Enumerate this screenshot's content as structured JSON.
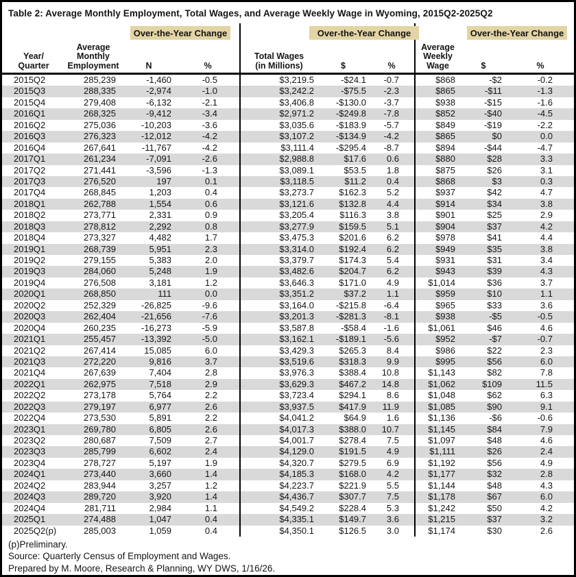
{
  "page": {
    "title": "Table 2: Average Monthly Employment, Total Wages, and Average Weekly Wage in Wyoming, 2015Q2-2025Q2"
  },
  "colors": {
    "banner_bg": "#e2d4a4",
    "row_stripe": "#d9d9d9",
    "border": "#000000"
  },
  "table": {
    "banner_label": "Over-the-Year Change",
    "columns": [
      "Year/\nQuarter",
      "Average\nMonthly\nEmployment",
      "N",
      "%",
      "Total Wages\n(in Millions)",
      "$",
      "%",
      "Average\nWeekly\nWage",
      "$",
      "%"
    ],
    "rows": [
      [
        "2015Q2",
        "285,239",
        "-1,460",
        "-0.5",
        "$3,219.5",
        "-$24.1",
        "-0.7",
        "$868",
        "-$2",
        "-0.2"
      ],
      [
        "2015Q3",
        "288,335",
        "-2,974",
        "-1.0",
        "$3,242.2",
        "-$75.5",
        "-2.3",
        "$865",
        "-$11",
        "-1.3"
      ],
      [
        "2015Q4",
        "279,408",
        "-6,132",
        "-2.1",
        "$3,406.8",
        "-$130.0",
        "-3.7",
        "$938",
        "-$15",
        "-1.6"
      ],
      [
        "2016Q1",
        "268,325",
        "-9,412",
        "-3.4",
        "$2,971.2",
        "-$249.8",
        "-7.8",
        "$852",
        "-$40",
        "-4.5"
      ],
      [
        "2016Q2",
        "275,036",
        "-10,203",
        "-3.6",
        "$3,035.6",
        "-$183.9",
        "-5.7",
        "$849",
        "-$19",
        "-2.2"
      ],
      [
        "2016Q3",
        "276,323",
        "-12,012",
        "-4.2",
        "$3,107.2",
        "-$134.9",
        "-4.2",
        "$865",
        "$0",
        "0.0"
      ],
      [
        "2016Q4",
        "267,641",
        "-11,767",
        "-4.2",
        "$3,111.4",
        "-$295.4",
        "-8.7",
        "$894",
        "-$44",
        "-4.7"
      ],
      [
        "2017Q1",
        "261,234",
        "-7,091",
        "-2.6",
        "$2,988.8",
        "$17.6",
        "0.6",
        "$880",
        "$28",
        "3.3"
      ],
      [
        "2017Q2",
        "271,441",
        "-3,596",
        "-1.3",
        "$3,089.1",
        "$53.5",
        "1.8",
        "$875",
        "$26",
        "3.1"
      ],
      [
        "2017Q3",
        "276,520",
        "197",
        "0.1",
        "$3,118.5",
        "$11.2",
        "0.4",
        "$868",
        "$3",
        "0.3"
      ],
      [
        "2017Q4",
        "268,845",
        "1,203",
        "0.4",
        "$3,273.7",
        "$162.3",
        "5.2",
        "$937",
        "$42",
        "4.7"
      ],
      [
        "2018Q1",
        "262,788",
        "1,554",
        "0.6",
        "$3,121.6",
        "$132.8",
        "4.4",
        "$914",
        "$34",
        "3.8"
      ],
      [
        "2018Q2",
        "273,771",
        "2,331",
        "0.9",
        "$3,205.4",
        "$116.3",
        "3.8",
        "$901",
        "$25",
        "2.9"
      ],
      [
        "2018Q3",
        "278,812",
        "2,292",
        "0.8",
        "$3,277.9",
        "$159.5",
        "5.1",
        "$904",
        "$37",
        "4.2"
      ],
      [
        "2018Q4",
        "273,327",
        "4,482",
        "1.7",
        "$3,475.3",
        "$201.6",
        "6.2",
        "$978",
        "$41",
        "4.4"
      ],
      [
        "2019Q1",
        "268,739",
        "5,951",
        "2.3",
        "$3,314.0",
        "$192.4",
        "6.2",
        "$949",
        "$35",
        "3.8"
      ],
      [
        "2019Q2",
        "279,155",
        "5,383",
        "2.0",
        "$3,379.7",
        "$174.3",
        "5.4",
        "$931",
        "$31",
        "3.4"
      ],
      [
        "2019Q3",
        "284,060",
        "5,248",
        "1.9",
        "$3,482.6",
        "$204.7",
        "6.2",
        "$943",
        "$39",
        "4.3"
      ],
      [
        "2019Q4",
        "276,508",
        "3,181",
        "1.2",
        "$3,646.3",
        "$171.0",
        "4.9",
        "$1,014",
        "$36",
        "3.7"
      ],
      [
        "2020Q1",
        "268,850",
        "111",
        "0.0",
        "$3,351.2",
        "$37.2",
        "1.1",
        "$959",
        "$10",
        "1.1"
      ],
      [
        "2020Q2",
        "252,329",
        "-26,825",
        "-9.6",
        "$3,164.0",
        "-$215.8",
        "-6.4",
        "$965",
        "$33",
        "3.6"
      ],
      [
        "2020Q3",
        "262,404",
        "-21,656",
        "-7.6",
        "$3,201.3",
        "-$281.3",
        "-8.1",
        "$938",
        "-$5",
        "-0.5"
      ],
      [
        "2020Q4",
        "260,235",
        "-16,273",
        "-5.9",
        "$3,587.8",
        "-$58.4",
        "-1.6",
        "$1,061",
        "$46",
        "4.6"
      ],
      [
        "2021Q1",
        "255,457",
        "-13,392",
        "-5.0",
        "$3,162.1",
        "-$189.1",
        "-5.6",
        "$952",
        "-$7",
        "-0.7"
      ],
      [
        "2021Q2",
        "267,414",
        "15,085",
        "6.0",
        "$3,429.3",
        "$265.3",
        "8.4",
        "$986",
        "$22",
        "2.3"
      ],
      [
        "2021Q3",
        "272,220",
        "9,816",
        "3.7",
        "$3,519.6",
        "$318.3",
        "9.9",
        "$995",
        "$56",
        "6.0"
      ],
      [
        "2021Q4",
        "267,639",
        "7,404",
        "2.8",
        "$3,976.3",
        "$388.4",
        "10.8",
        "$1,143",
        "$82",
        "7.8"
      ],
      [
        "2022Q1",
        "262,975",
        "7,518",
        "2.9",
        "$3,629.3",
        "$467.2",
        "14.8",
        "$1,062",
        "$109",
        "11.5"
      ],
      [
        "2022Q2",
        "273,178",
        "5,764",
        "2.2",
        "$3,723.4",
        "$294.1",
        "8.6",
        "$1,048",
        "$62",
        "6.3"
      ],
      [
        "2022Q3",
        "279,197",
        "6,977",
        "2.6",
        "$3,937.5",
        "$417.9",
        "11.9",
        "$1,085",
        "$90",
        "9.1"
      ],
      [
        "2022Q4",
        "273,530",
        "5,891",
        "2.2",
        "$4,041.2",
        "$64.9",
        "1.6",
        "$1,136",
        "-$6",
        "-0.6"
      ],
      [
        "2023Q1",
        "269,780",
        "6,805",
        "2.6",
        "$4,017.3",
        "$388.0",
        "10.7",
        "$1,145",
        "$84",
        "7.9"
      ],
      [
        "2023Q2",
        "280,687",
        "7,509",
        "2.7",
        "$4,001.7",
        "$278.4",
        "7.5",
        "$1,097",
        "$48",
        "4.6"
      ],
      [
        "2023Q3",
        "285,799",
        "6,602",
        "2.4",
        "$4,129.0",
        "$191.5",
        "4.9",
        "$1,111",
        "$26",
        "2.4"
      ],
      [
        "2023Q4",
        "278,727",
        "5,197",
        "1.9",
        "$4,320.7",
        "$279.5",
        "6.9",
        "$1,192",
        "$56",
        "4.9"
      ],
      [
        "2024Q1",
        "273,440",
        "3,660",
        "1.4",
        "$4,185.3",
        "$168.0",
        "4.2",
        "$1,177",
        "$32",
        "2.8"
      ],
      [
        "2024Q2",
        "283,944",
        "3,257",
        "1.2",
        "$4,223.7",
        "$221.9",
        "5.5",
        "$1,144",
        "$48",
        "4.3"
      ],
      [
        "2024Q3",
        "289,720",
        "3,920",
        "1.4",
        "$4,436.7",
        "$307.7",
        "7.5",
        "$1,178",
        "$67",
        "6.0"
      ],
      [
        "2024Q4",
        "281,711",
        "2,984",
        "1.1",
        "$4,549.2",
        "$228.4",
        "5.3",
        "$1,242",
        "$50",
        "4.2"
      ],
      [
        "2025Q1",
        "274,488",
        "1,047",
        "0.4",
        "$4,335.1",
        "$149.7",
        "3.6",
        "$1,215",
        "$37",
        "3.2"
      ],
      [
        "2025Q2(p)",
        "285,003",
        "1,059",
        "0.4",
        "$4,350.1",
        "$126.5",
        "3.0",
        "$1,174",
        "$30",
        "2.6"
      ]
    ]
  },
  "footnotes": {
    "preliminary": "(p)Preliminary.",
    "source": "Source: Quarterly Census of Employment and Wages.",
    "prepared": "Prepared by M. Moore, Research & Planning, WY DWS, 1/16/26."
  }
}
